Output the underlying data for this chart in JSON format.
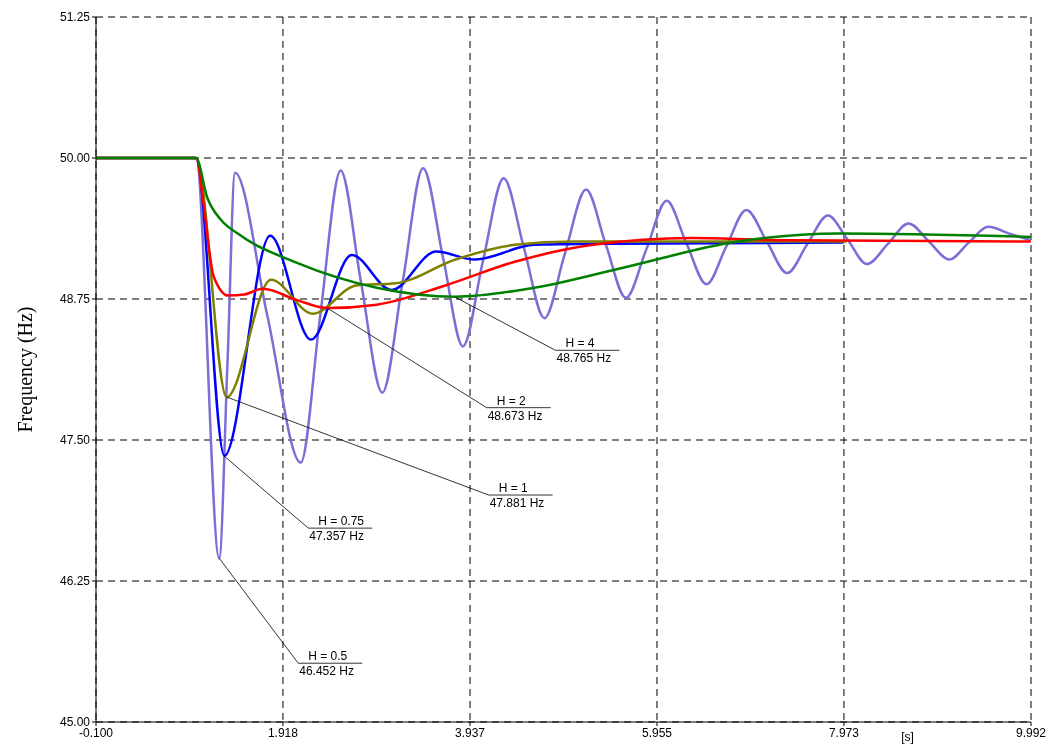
{
  "chart_data": {
    "type": "line",
    "ylabel": "Frequency (Hz)",
    "xlabel": "[s]",
    "xlim": [
      -0.1,
      9.992
    ],
    "xticks": [
      {
        "value": -0.1,
        "label": "-0.100"
      },
      1.918,
      3.937,
      5.955,
      7.973,
      9.992
    ],
    "ylim": [
      45,
      51.25
    ],
    "yticks": [
      {
        "value": 45,
        "label": "45.00"
      },
      46.25,
      {
        "value": 47.5,
        "label": "47.50"
      },
      48.75,
      {
        "value": 50,
        "label": "50.00"
      },
      51.25
    ],
    "grid": true,
    "series": [
      {
        "color": "#7b6fd6",
        "x": [
          -0.1,
          0.98,
          1.23,
          1.32,
          1.4,
          1.75,
          2.11,
          2.32,
          2.54,
          2.76,
          2.99,
          3.21,
          3.43,
          3.65,
          3.86,
          4.08,
          4.3,
          4.52,
          4.74,
          4.96,
          5.19,
          5.4,
          5.62,
          5.84,
          6.06,
          6.27,
          6.49,
          6.7,
          6.92,
          7.14,
          7.36,
          7.58,
          7.8,
          8.01,
          8.22,
          8.45,
          8.67,
          8.89,
          9.11,
          9.32,
          9.53,
          9.76,
          9.99
        ],
        "values": [
          50,
          50,
          46.45,
          48.2,
          49.87,
          48.6,
          47.3,
          48.6,
          49.89,
          48.9,
          47.92,
          48.9,
          49.91,
          49.1,
          48.33,
          49.1,
          49.82,
          49.2,
          48.58,
          49.15,
          49.72,
          49.24,
          48.76,
          49.19,
          49.62,
          49.25,
          48.88,
          49.21,
          49.54,
          49.26,
          48.98,
          49.24,
          49.49,
          49.28,
          49.06,
          49.24,
          49.42,
          49.26,
          49.1,
          49.25,
          49.39,
          49.33,
          49.27
        ]
      },
      {
        "color": "#0000ff",
        "x": [
          -0.1,
          0.98,
          1.285,
          1.78,
          2.22,
          2.66,
          3.09,
          3.57,
          3.99,
          4.63,
          5.5,
          7.97
        ],
        "values": [
          50,
          50,
          47.36,
          49.31,
          48.39,
          49.14,
          48.83,
          49.17,
          49.1,
          49.23,
          49.24,
          49.25
        ]
      },
      {
        "color": "#808000",
        "x": [
          -0.1,
          0.98,
          1.31,
          1.79,
          2.24,
          2.71,
          3.14,
          3.78,
          4.42,
          5.06,
          8.0
        ],
        "values": [
          50,
          50,
          47.88,
          48.92,
          48.62,
          48.87,
          48.89,
          49.1,
          49.23,
          49.26,
          49.26
        ]
      },
      {
        "color": "#ff0000",
        "x": [
          -0.1,
          0.98,
          1.06,
          1.17,
          1.33,
          1.5,
          1.7,
          2.07,
          2.39,
          2.93,
          3.67,
          4.42,
          5.27,
          6.34,
          7.4,
          9.99
        ],
        "values": [
          50,
          50,
          49.6,
          48.95,
          48.78,
          48.79,
          48.84,
          48.74,
          48.67,
          48.7,
          48.87,
          49.08,
          49.23,
          49.29,
          49.27,
          49.26
        ]
      },
      {
        "color": "#008000",
        "x": [
          -0.1,
          0.98,
          1.1,
          1.25,
          1.43,
          2.07,
          2.93,
          3.78,
          4.63,
          5.7,
          6.76,
          7.93,
          9.99
        ],
        "values": [
          50,
          50,
          49.65,
          49.45,
          49.33,
          49.07,
          48.85,
          48.77,
          48.85,
          49.05,
          49.25,
          49.33,
          49.3
        ]
      }
    ],
    "annotations": [
      {
        "text": "H = 0.5\n46.452 Hz",
        "x": 1.23,
        "y": 46.452
      },
      {
        "text": "H = 0.75\n47.357 Hz",
        "x": 1.285,
        "y": 47.357
      },
      {
        "text": "H = 1\n47.881 Hz",
        "x": 1.31,
        "y": 47.881
      },
      {
        "text": "H = 2\n48.673 Hz",
        "x": 2.39,
        "y": 48.673
      },
      {
        "text": "H = 4\n48.765 Hz",
        "x": 3.78,
        "y": 48.765
      }
    ]
  }
}
